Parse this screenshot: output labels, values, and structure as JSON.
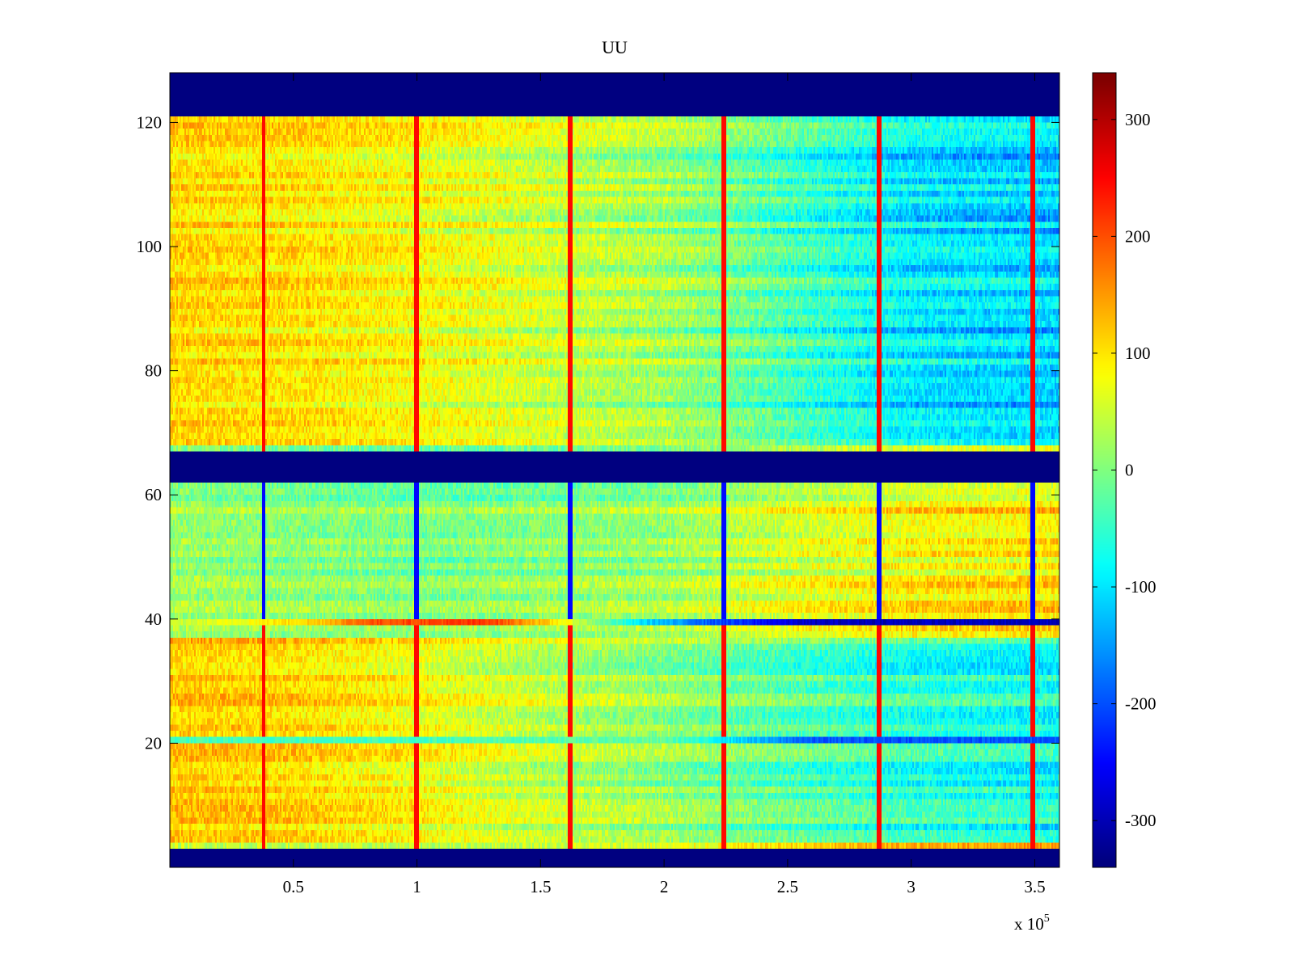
{
  "chart_data": {
    "type": "heatmap",
    "title": "UU",
    "xlabel": "",
    "ylabel": "",
    "x_multiplier_label": "x 10",
    "x_multiplier_exponent": "5",
    "xlim": [
      0,
      3.6
    ],
    "ylim": [
      0,
      128
    ],
    "xticks": [
      0.5,
      1,
      1.5,
      2,
      2.5,
      3,
      3.5
    ],
    "xtick_labels": [
      "0.5",
      "1",
      "1.5",
      "2",
      "2.5",
      "3",
      "3.5"
    ],
    "yticks": [
      20,
      40,
      60,
      80,
      100,
      120
    ],
    "ytick_labels": [
      "20",
      "40",
      "60",
      "80",
      "100",
      "120"
    ],
    "colormap": "jet",
    "clim": [
      -340,
      340
    ],
    "colorbar_ticks": [
      300,
      200,
      100,
      0,
      -100,
      -200,
      -300
    ],
    "colorbar_tick_labels": [
      "300",
      "200",
      "100",
      "0",
      "-100",
      "-200",
      "-300"
    ],
    "masked_row_ranges": [
      [
        0,
        3
      ],
      [
        62,
        67
      ],
      [
        121,
        128
      ]
    ],
    "masked_value": -340,
    "vertical_stripe_x": [
      0.38,
      1.0,
      1.62,
      2.24,
      2.87,
      3.49
    ],
    "zones": [
      {
        "rows": [
          4,
          36
        ],
        "x": [
          0,
          0.5,
          1.0,
          1.5,
          2.0,
          2.5,
          3.0,
          3.6
        ],
        "values": [
          120,
          110,
          80,
          40,
          10,
          -30,
          -60,
          -80
        ]
      },
      {
        "rows": [
          40,
          61
        ],
        "x": [
          0,
          0.5,
          1.0,
          1.5,
          2.0,
          2.5,
          3.0,
          3.6
        ],
        "values": [
          20,
          10,
          0,
          10,
          20,
          60,
          90,
          100
        ]
      },
      {
        "rows": [
          68,
          120
        ],
        "x": [
          0,
          0.5,
          1.0,
          1.5,
          2.0,
          2.5,
          3.0,
          3.6
        ],
        "values": [
          110,
          100,
          80,
          50,
          20,
          -40,
          -100,
          -120
        ]
      }
    ],
    "highlighted_rows": [
      {
        "row": 39,
        "x": [
          0,
          0.6,
          0.8,
          1.3,
          1.6,
          1.9,
          2.2,
          2.6,
          3.6
        ],
        "values": [
          40,
          120,
          200,
          220,
          80,
          -100,
          -200,
          -300,
          -300
        ]
      },
      {
        "row": 20,
        "x": [
          0,
          1.0,
          2.0,
          2.6,
          3.6
        ],
        "values": [
          -40,
          -40,
          -20,
          -200,
          -200
        ]
      }
    ]
  }
}
